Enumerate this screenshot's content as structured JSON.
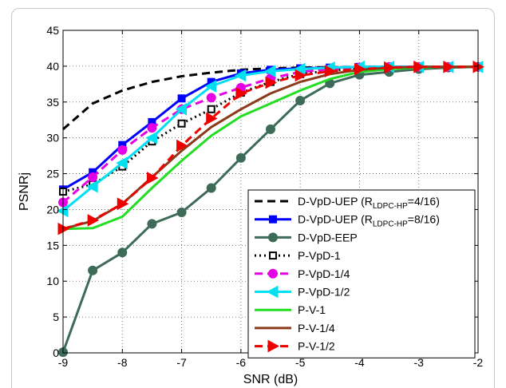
{
  "chart_data": {
    "type": "line",
    "xlabel": "SNR (dB)",
    "ylabel": "PSNRj",
    "xlim": [
      -9,
      -2
    ],
    "ylim": [
      0,
      45
    ],
    "xticks": [
      -9,
      -8,
      -7,
      -6,
      -5,
      -4,
      -3,
      -2
    ],
    "yticks": [
      0,
      5,
      10,
      15,
      20,
      25,
      30,
      35,
      40,
      45
    ],
    "grid": true,
    "legend_position": "bottom-right",
    "series": [
      {
        "name": "D-VpD-UEP (R_LDPC-HP=4/16)",
        "legend_main": "D-VpD-UEP (R",
        "legend_sub": "LDPC-HP",
        "legend_tail": "=4/16)",
        "color": "#000000",
        "dash": "10,6",
        "marker": "none",
        "x": [
          -9,
          -8.5,
          -8,
          -7.5,
          -7,
          -6.5,
          -6,
          -5.5,
          -5,
          -4.5,
          -4,
          -3.5,
          -3,
          -2.5,
          -2
        ],
        "y": [
          31.2,
          34.8,
          36.6,
          37.8,
          38.6,
          39.1,
          39.5,
          39.7,
          39.8,
          39.85,
          39.9,
          39.9,
          39.9,
          39.9,
          39.9
        ]
      },
      {
        "name": "D-VpD-UEP (R_LDPC-HP=8/16)",
        "legend_main": "D-VpD-UEP (R",
        "legend_sub": "LDPC-HP",
        "legend_tail": "=8/16)",
        "color": "#0000ff",
        "dash": "",
        "marker": "square-filled",
        "x": [
          -9,
          -8.5,
          -8,
          -7.5,
          -7,
          -6.5,
          -6,
          -5.5,
          -5,
          -4.5,
          -4,
          -3.5,
          -3,
          -2.5,
          -2
        ],
        "y": [
          22.8,
          25.2,
          29.0,
          32.2,
          35.5,
          37.8,
          39.0,
          39.5,
          39.7,
          39.8,
          39.9,
          39.9,
          39.9,
          39.9,
          39.9
        ]
      },
      {
        "name": "D-VpD-EEP",
        "color": "#3d6b58",
        "dash": "",
        "marker": "circle-filled",
        "x": [
          -9,
          -8.5,
          -8,
          -7.5,
          -7,
          -6.5,
          -6,
          -5.5,
          -5,
          -4.5,
          -4,
          -3.5,
          -3,
          -2.5,
          -2
        ],
        "y": [
          0.1,
          11.5,
          14.0,
          18.0,
          19.6,
          23.0,
          27.2,
          31.2,
          35.2,
          37.6,
          38.8,
          39.2,
          39.6,
          39.8,
          39.9
        ]
      },
      {
        "name": "P-VpD-1",
        "color": "#000000",
        "dash": "2,4",
        "marker": "square-open",
        "x": [
          -9,
          -8.5,
          -8,
          -7.5,
          -7,
          -6.5,
          -6,
          -5.5,
          -5,
          -4.5,
          -4,
          -3.5,
          -3,
          -2.5,
          -2
        ],
        "y": [
          22.5,
          23.5,
          26.0,
          29.5,
          32.0,
          34.0,
          36.3,
          37.8,
          38.9,
          39.4,
          39.7,
          39.8,
          39.9,
          39.9,
          39.9
        ]
      },
      {
        "name": "P-VpD-1/4",
        "color": "#e600e6",
        "dash": "10,6",
        "marker": "circle-filled",
        "x": [
          -9,
          -8.5,
          -8,
          -7.5,
          -7,
          -6.5,
          -6,
          -5.5,
          -5,
          -4.5,
          -4,
          -3.5,
          -3,
          -2.5,
          -2
        ],
        "y": [
          21.0,
          24.5,
          28.3,
          31.4,
          34.0,
          35.6,
          37.0,
          38.3,
          39.2,
          39.6,
          39.8,
          39.9,
          39.9,
          39.9,
          39.9
        ]
      },
      {
        "name": "P-VpD-1/2",
        "color": "#00e0f0",
        "dash": "",
        "marker": "triangle-left",
        "x": [
          -9,
          -8.5,
          -8,
          -7.5,
          -7,
          -6.5,
          -6,
          -5.5,
          -5,
          -4.5,
          -4,
          -3.5,
          -3,
          -2.5,
          -2
        ],
        "y": [
          19.8,
          23.2,
          26.5,
          30.0,
          34.0,
          37.2,
          38.7,
          39.3,
          39.6,
          39.8,
          39.9,
          39.9,
          39.9,
          39.9,
          39.9
        ]
      },
      {
        "name": "P-V-1",
        "color": "#22dd22",
        "dash": "",
        "marker": "none",
        "x": [
          -9,
          -8.5,
          -8,
          -7.5,
          -7,
          -6.5,
          -6,
          -5.5,
          -5,
          -4.5,
          -4,
          -3.5,
          -3,
          -2.5,
          -2
        ],
        "y": [
          17.3,
          17.4,
          19.0,
          23.0,
          26.8,
          30.3,
          33.0,
          34.8,
          36.6,
          38.2,
          39.2,
          39.6,
          39.8,
          39.9,
          39.9
        ]
      },
      {
        "name": "P-V-1/4",
        "color": "#8b3a1a",
        "dash": "",
        "marker": "none",
        "x": [
          -9,
          -8.5,
          -8,
          -7.5,
          -7,
          -6.5,
          -6,
          -5.5,
          -5,
          -4.5,
          -4,
          -3.5,
          -3,
          -2.5,
          -2
        ],
        "y": [
          17.3,
          18.4,
          20.8,
          24.5,
          28.2,
          31.5,
          34.0,
          36.2,
          37.8,
          38.9,
          39.5,
          39.8,
          39.9,
          39.9,
          39.9
        ]
      },
      {
        "name": "P-V-1/2",
        "color": "#ee0000",
        "dash": "10,6",
        "marker": "triangle-right",
        "x": [
          -9,
          -8.5,
          -8,
          -7.5,
          -7,
          -6.5,
          -6,
          -5.5,
          -5,
          -4.5,
          -4,
          -3.5,
          -3,
          -2.5,
          -2
        ],
        "y": [
          17.3,
          18.5,
          20.8,
          24.4,
          28.9,
          32.7,
          36.2,
          37.7,
          38.7,
          39.3,
          39.6,
          39.8,
          39.9,
          39.9,
          39.9
        ]
      }
    ]
  }
}
